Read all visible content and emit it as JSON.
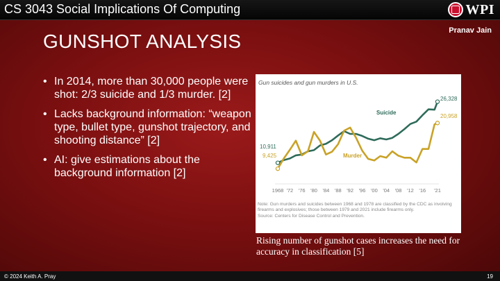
{
  "header": {
    "course_title": "CS 3043 Social Implications Of Computing",
    "logo_text": "WPI"
  },
  "author": "Pranav Jain",
  "slide_title": "GUNSHOT ANALYSIS",
  "bullets": [
    "In 2014, more than 30,000 people were shot: 2/3 suicide and 1/3 murder. [2]",
    "Lacks background information: “weapon type, bullet type, gunshot trajectory, and shooting distance” [2]",
    "AI: give estimations about the background information [2]"
  ],
  "caption": "Rising number of gunshot cases increases the need for accuracy in classification [5]",
  "footer": {
    "copyright": "© 2024 Keith A. Pray",
    "page_number": "19"
  },
  "colors": {
    "suicide": "#2e6b5a",
    "murder": "#c9a227",
    "accent": "#9b1a1a"
  },
  "chart_data": {
    "type": "line",
    "title": "Gun suicides and gun murders in U.S.",
    "x": [
      1968,
      1970,
      1972,
      1974,
      1976,
      1978,
      1980,
      1982,
      1984,
      1986,
      1988,
      1990,
      1992,
      1994,
      1996,
      1998,
      2000,
      2002,
      2004,
      2006,
      2008,
      2010,
      2012,
      2014,
      2016,
      2018,
      2020,
      2021
    ],
    "series": [
      {
        "name": "Suicide",
        "values": [
          10911,
          11600,
          12000,
          12800,
          13000,
          13800,
          14100,
          15300,
          15700,
          16600,
          17800,
          18900,
          18200,
          18200,
          17700,
          17000,
          16600,
          17100,
          16800,
          17200,
          18200,
          19400,
          20700,
          21300,
          22900,
          24400,
          24300,
          26328
        ]
      },
      {
        "name": "Murder",
        "values": [
          9425,
          12000,
          14200,
          16500,
          12800,
          13800,
          18700,
          16500,
          13000,
          13700,
          15600,
          19000,
          19800,
          17200,
          14000,
          11900,
          11500,
          12600,
          12200,
          13800,
          12700,
          12200,
          12200,
          11000,
          14400,
          14400,
          20600,
          20958
        ]
      }
    ],
    "endpoint_labels": {
      "suicide_start": "10,911",
      "murder_start": "9,425",
      "suicide_end": "26,328",
      "murder_end": "20,958"
    },
    "tick_labels": [
      "1968",
      "'72",
      "'76",
      "'80",
      "'84",
      "'88",
      "'92",
      "'96",
      "'00",
      "'04",
      "'08",
      "'12",
      "'16",
      "'21"
    ],
    "ylim": [
      7000,
      28000
    ],
    "note": "Note: Gun murders and suicides between 1968 and 1978 are classified by the CDC as involving firearms and explosives; those between 1979 and 2021 include firearms only.",
    "source": "Source: Centers for Disease Control and Prevention."
  }
}
